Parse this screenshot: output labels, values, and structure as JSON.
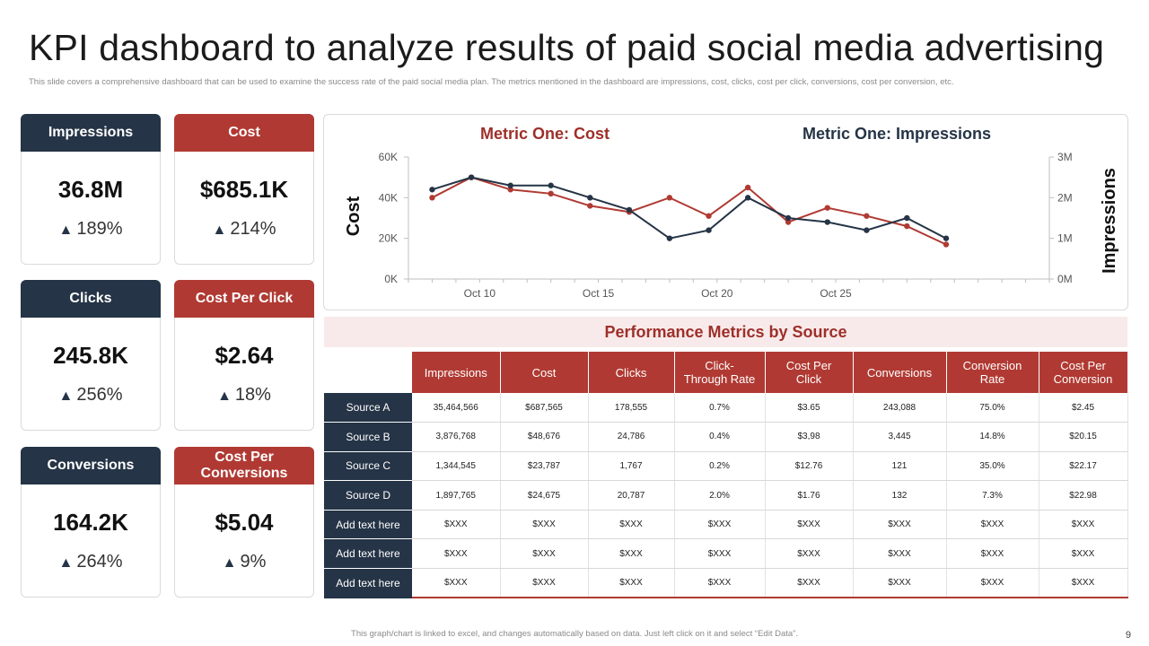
{
  "title": "KPI dashboard to analyze results of paid social media advertising",
  "subtitle": "This slide covers a comprehensive dashboard that can be used to examine the success rate of the paid social media plan. The metrics mentioned  in the dashboard are impressions, cost, clicks, cost per click, conversions, cost per conversion, etc.",
  "kpis": {
    "impressions": {
      "label": "Impressions",
      "value": "36.8M",
      "delta": "189%"
    },
    "cost": {
      "label": "Cost",
      "value": "$685.1K",
      "delta": "214%"
    },
    "clicks": {
      "label": "Clicks",
      "value": "245.8K",
      "delta": "256%"
    },
    "cpc": {
      "label": "Cost Per Click",
      "value": "$2.64",
      "delta": "18%"
    },
    "conversions": {
      "label": "Conversions",
      "value": "164.2K",
      "delta": "264%"
    },
    "cpconv": {
      "label": "Cost Per Conversions",
      "value": "$5.04",
      "delta": "9%"
    }
  },
  "arrow_glyph": "▲",
  "colors": {
    "navy": "#253446",
    "red": "#b03a33"
  },
  "chart_data": {
    "type": "line",
    "legend_cost": "Metric One: Cost",
    "legend_impressions": "Metric One: Impressions",
    "ylabel_left": "Cost",
    "ylabel_right": "Impressions",
    "x": [
      7,
      8,
      9,
      10,
      11,
      12,
      13,
      14,
      15,
      16,
      17,
      18,
      19,
      20,
      21,
      22,
      23,
      24,
      25,
      26,
      27,
      28,
      29,
      30,
      31,
      32,
      33,
      34
    ],
    "x_tick_values": [
      10,
      15,
      20,
      25
    ],
    "x_tick_labels": [
      "Oct 10",
      "Oct 15",
      "Oct 20",
      "Oct 25"
    ],
    "y_left_ticks": [
      "0K",
      "20K",
      "40K",
      "60K"
    ],
    "y_left_range": [
      0,
      60000
    ],
    "y_right_ticks": [
      "0M",
      "1M",
      "2M",
      "3M"
    ],
    "y_right_range": [
      0,
      3000000
    ],
    "series": [
      {
        "name": "Cost",
        "axis": "left",
        "color": "#b03a33",
        "points": [
          [
            8,
            40000
          ],
          [
            9.65,
            50000
          ],
          [
            11.3,
            44000
          ],
          [
            13,
            42000
          ],
          [
            14.65,
            36000
          ],
          [
            16.3,
            33000
          ],
          [
            18,
            40000
          ],
          [
            19.65,
            31000
          ],
          [
            21.3,
            45000
          ],
          [
            23,
            28000
          ],
          [
            24.65,
            35000
          ],
          [
            26.3,
            31000
          ],
          [
            28,
            26000
          ],
          [
            29.65,
            17000
          ]
        ]
      },
      {
        "name": "Impressions",
        "axis": "right",
        "color": "#253446",
        "points": [
          [
            8,
            2200000
          ],
          [
            9.65,
            2500000
          ],
          [
            11.3,
            2300000
          ],
          [
            13,
            2300000
          ],
          [
            14.65,
            2000000
          ],
          [
            16.3,
            1700000
          ],
          [
            18,
            1000000
          ],
          [
            19.65,
            1200000
          ],
          [
            21.3,
            2000000
          ],
          [
            23,
            1500000
          ],
          [
            24.65,
            1400000
          ],
          [
            26.3,
            1200000
          ],
          [
            28,
            1500000
          ],
          [
            29.65,
            1000000
          ]
        ]
      }
    ]
  },
  "table": {
    "title": "Performance Metrics by Source",
    "headers": [
      "Impressions",
      "Cost",
      "Clicks",
      "Click-\nThrough Rate",
      "Cost Per\nClick",
      "Conversions",
      "Conversion\nRate",
      "Cost Per\nConversion"
    ],
    "rows": [
      {
        "label": "Source A",
        "cells": [
          "35,464,566",
          "$687,565",
          "178,555",
          "0.7%",
          "$3.65",
          "243,088",
          "75.0%",
          "$2.45"
        ]
      },
      {
        "label": "Source B",
        "cells": [
          "3,876,768",
          "$48,676",
          "24,786",
          "0.4%",
          "$3,98",
          "3,445",
          "14.8%",
          "$20.15"
        ]
      },
      {
        "label": "Source C",
        "cells": [
          "1,344,545",
          "$23,787",
          "1,767",
          "0.2%",
          "$12.76",
          "121",
          "35.0%",
          "$22.17"
        ]
      },
      {
        "label": "Source D",
        "cells": [
          "1,897,765",
          "$24,675",
          "20,787",
          "2.0%",
          "$1.76",
          "132",
          "7.3%",
          "$22.98"
        ]
      },
      {
        "label": "Add text here",
        "cells": [
          "$XXX",
          "$XXX",
          "$XXX",
          "$XXX",
          "$XXX",
          "$XXX",
          "$XXX",
          "$XXX"
        ]
      },
      {
        "label": "Add text here",
        "cells": [
          "$XXX",
          "$XXX",
          "$XXX",
          "$XXX",
          "$XXX",
          "$XXX",
          "$XXX",
          "$XXX"
        ]
      },
      {
        "label": "Add text here",
        "cells": [
          "$XXX",
          "$XXX",
          "$XXX",
          "$XXX",
          "$XXX",
          "$XXX",
          "$XXX",
          "$XXX"
        ]
      }
    ]
  },
  "footer": "This graph/chart is linked to excel, and changes automatically based on data. Just left click on it and select “Edit Data”.",
  "page_number": "9"
}
